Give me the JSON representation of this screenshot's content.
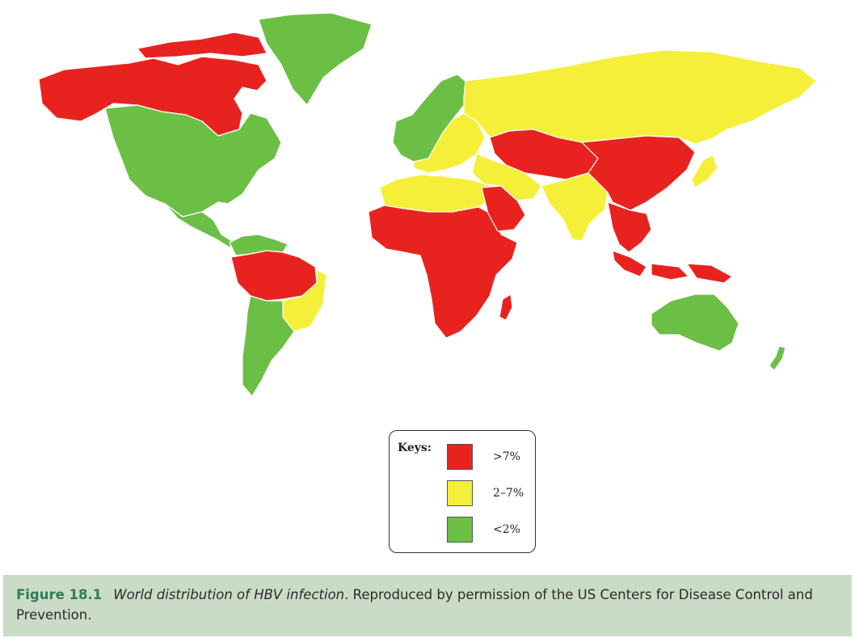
{
  "map": {
    "colors": {
      "high": "#e8231f",
      "intermediate": "#f5ef3a",
      "low": "#6cbf45",
      "border": "#ffffff",
      "water": "#ffffff"
    },
    "regions": [
      {
        "name": "Alaska and northern Canada",
        "level": "high"
      },
      {
        "name": "Greenland",
        "level": "low"
      },
      {
        "name": "North America",
        "level": "low"
      },
      {
        "name": "Central America",
        "level": "low"
      },
      {
        "name": "Northern South America",
        "level": "low"
      },
      {
        "name": "Amazon basin",
        "level": "high"
      },
      {
        "name": "Eastern Brazil",
        "level": "intermediate"
      },
      {
        "name": "Southern South America",
        "level": "low"
      },
      {
        "name": "Western and Northern Europe",
        "level": "low"
      },
      {
        "name": "Eastern and Southern Europe",
        "level": "intermediate"
      },
      {
        "name": "Russia",
        "level": "intermediate"
      },
      {
        "name": "North Africa",
        "level": "intermediate"
      },
      {
        "name": "Sub-Saharan Africa",
        "level": "high"
      },
      {
        "name": "Madagascar",
        "level": "high"
      },
      {
        "name": "Arabian Peninsula",
        "level": "high"
      },
      {
        "name": "Middle East",
        "level": "intermediate"
      },
      {
        "name": "Central Asia",
        "level": "high"
      },
      {
        "name": "India",
        "level": "intermediate"
      },
      {
        "name": "China",
        "level": "high"
      },
      {
        "name": "Southeast Asia",
        "level": "high"
      },
      {
        "name": "Japan",
        "level": "intermediate"
      },
      {
        "name": "Indonesia and New Guinea",
        "level": "high"
      },
      {
        "name": "Australia",
        "level": "low"
      },
      {
        "name": "New Zealand",
        "level": "low"
      }
    ]
  },
  "legend": {
    "title": "Keys:",
    "items": [
      {
        "label": ">7%",
        "color": "#e8231f"
      },
      {
        "label": "2–7%",
        "color": "#f5ef3a"
      },
      {
        "label": "<2%",
        "color": "#6cbf45"
      }
    ]
  },
  "caption": {
    "label": "Figure 18.1",
    "title": "World distribution of HBV infection",
    "text": ". Reproduced by permission of the US Centers for Disease Control and Prevention."
  }
}
